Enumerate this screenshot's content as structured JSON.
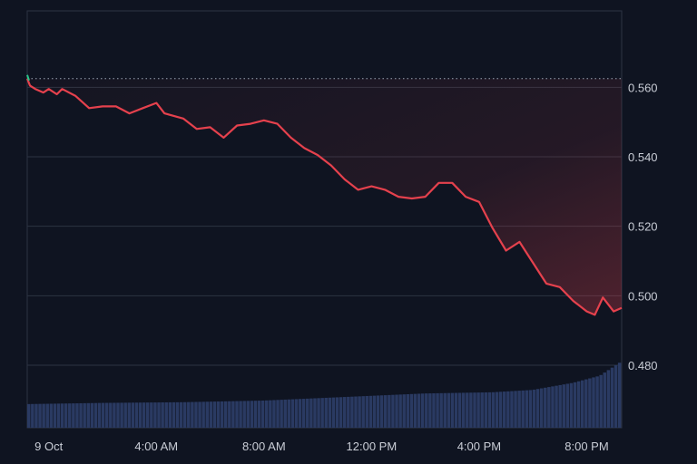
{
  "chart_data": {
    "type": "area",
    "title": "",
    "xlabel": "",
    "ylabel": "",
    "ylim": [
      0.462,
      0.582
    ],
    "y_ticks": [
      "0.560",
      "0.540",
      "0.520",
      "0.500",
      "0.480"
    ],
    "y_tick_values": [
      0.56,
      0.54,
      0.52,
      0.5,
      0.48
    ],
    "x_ticks": [
      "9 Oct",
      "4:00 AM",
      "8:00 AM",
      "12:00 PM",
      "4:00 PM",
      "8:00 PM"
    ],
    "x_tick_hours": [
      0,
      4,
      8,
      12,
      16,
      20
    ],
    "xlim_hours": [
      -0.8,
      21.3
    ],
    "reference_price": 0.5625,
    "grid": true,
    "price_series": {
      "name": "",
      "color": "#e5414d",
      "hours": [
        -0.8,
        -0.7,
        -0.5,
        -0.2,
        0.0,
        0.3,
        0.5,
        1.0,
        1.5,
        2.0,
        2.5,
        3.0,
        3.5,
        4.0,
        4.3,
        5.0,
        5.5,
        6.0,
        6.5,
        7.0,
        7.5,
        8.0,
        8.5,
        9.0,
        9.5,
        10.0,
        10.5,
        11.0,
        11.5,
        12.0,
        12.5,
        13.0,
        13.5,
        14.0,
        14.5,
        15.0,
        15.5,
        16.0,
        16.5,
        17.0,
        17.5,
        18.0,
        18.5,
        19.0,
        19.5,
        20.0,
        20.3,
        20.6,
        21.0,
        21.3
      ],
      "values": [
        0.5625,
        0.5605,
        0.5595,
        0.5585,
        0.5595,
        0.558,
        0.5595,
        0.5575,
        0.554,
        0.5545,
        0.5545,
        0.5525,
        0.554,
        0.5555,
        0.5525,
        0.551,
        0.548,
        0.5485,
        0.5455,
        0.549,
        0.5495,
        0.5505,
        0.5495,
        0.5455,
        0.5425,
        0.5405,
        0.5375,
        0.5335,
        0.5305,
        0.5315,
        0.5305,
        0.5285,
        0.528,
        0.5285,
        0.5325,
        0.5325,
        0.5285,
        0.527,
        0.5195,
        0.513,
        0.5155,
        0.5095,
        0.5035,
        0.5025,
        0.4985,
        0.4955,
        0.4945,
        0.4995,
        0.4955,
        0.4965
      ]
    },
    "volume_series": {
      "name": "",
      "color": "#2a3a62",
      "description_ylim": [
        0,
        1
      ],
      "hours": [
        -0.8,
        2.0,
        5.0,
        8.0,
        11.0,
        14.0,
        16.5,
        18.0,
        19.5,
        20.5,
        21.3
      ],
      "values": [
        0.1,
        0.105,
        0.108,
        0.115,
        0.13,
        0.145,
        0.15,
        0.16,
        0.19,
        0.22,
        0.28
      ]
    }
  }
}
